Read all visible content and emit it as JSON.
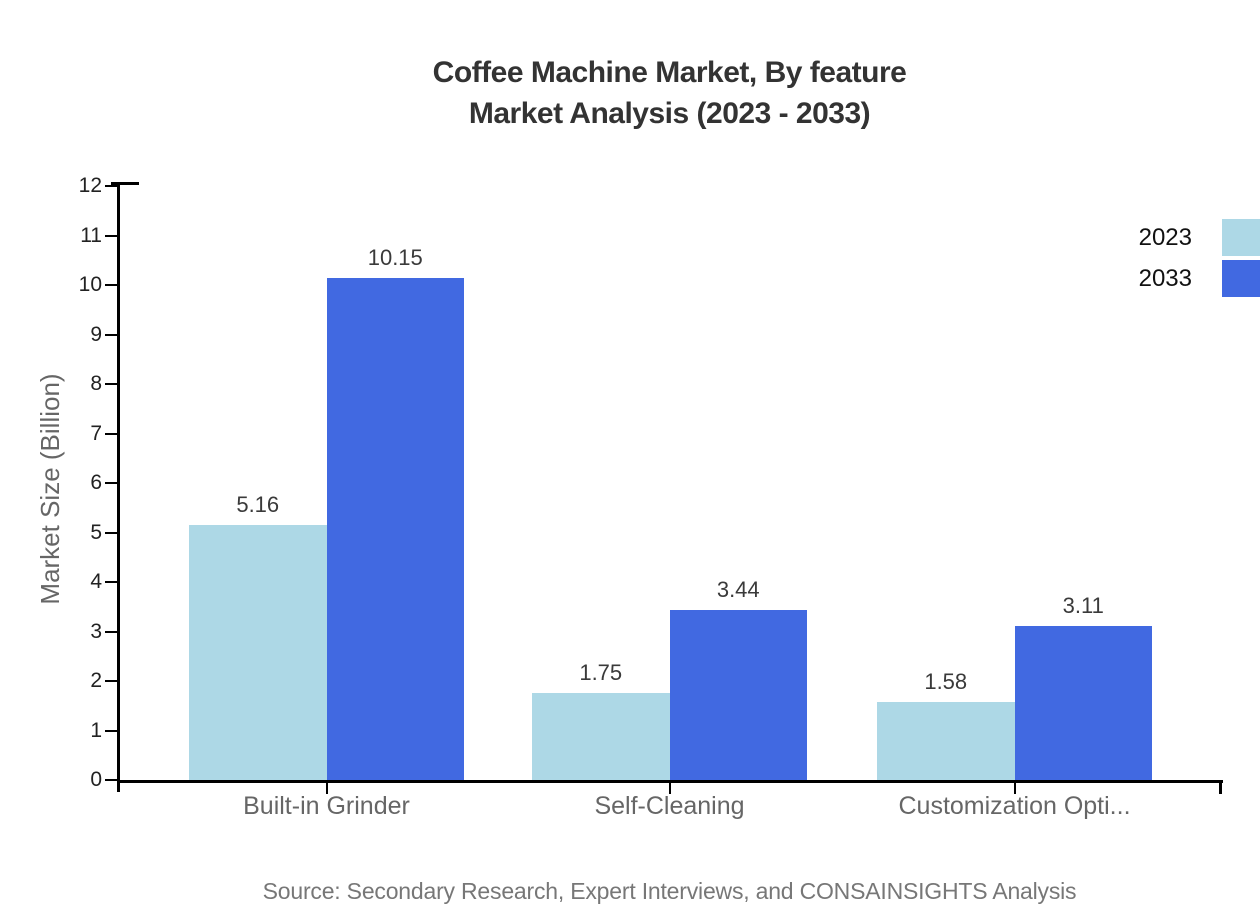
{
  "source": "Source: Secondary Research, Expert Interviews, and CONSAINSIGHTS Analysis",
  "chart_data": {
    "type": "bar",
    "title": "Coffee Machine Market, By feature",
    "subtitle": "Market Analysis (2023 - 2033)",
    "ylabel": "Market Size (Billion)",
    "xlabel": "",
    "ylim": [
      0,
      12
    ],
    "ytick_step": 1,
    "grid": false,
    "legend_position": "right",
    "categories": [
      "Built-in Grinder",
      "Self-Cleaning",
      "Customization Opti..."
    ],
    "series": [
      {
        "name": "2023",
        "color": "#ADD8E6",
        "values": [
          5.16,
          1.75,
          1.58
        ]
      },
      {
        "name": "2033",
        "color": "#4169E1",
        "values": [
          10.15,
          3.44,
          3.11
        ]
      }
    ],
    "value_label_decimals": 2
  }
}
